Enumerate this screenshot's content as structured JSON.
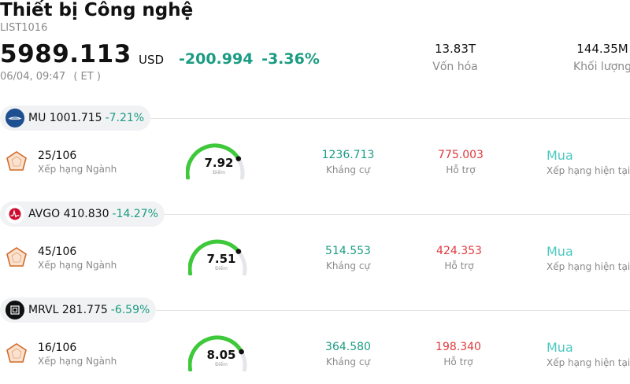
{
  "header": {
    "title": "Thiết bị Công nghệ",
    "code": "LIST1016",
    "price": "5989.113",
    "currency": "USD",
    "change": "-200.994",
    "change_pct": "-3.36%",
    "datetime": "06/04, 09:47",
    "tz": "( ET )"
  },
  "stats": {
    "market_cap": {
      "value": "13.83T",
      "label": "Vốn hóa"
    },
    "volume": {
      "value": "144.35M",
      "label": "Khối lượng"
    }
  },
  "colors": {
    "positive_green": "#1a9c82",
    "support_red": "#e0393e",
    "rating_teal": "#4fc8c0",
    "gauge_green": "#3ec93a"
  },
  "stocks": [
    {
      "ticker_price": "MU 1001.715",
      "change_pct": "-7.21%",
      "rank": "25/106",
      "rank_label": "Xếp hạng Ngành",
      "score": "7.92",
      "score_value": 7.92,
      "score_label": "Điểm",
      "resistance": "1236.713",
      "resistance_label": "Kháng cự",
      "support": "775.003",
      "support_label": "Hỗ trợ",
      "rating": "Mua",
      "rating_label": "Xếp hạng hiện tại",
      "logo": "micron-logo-icon",
      "logo_color": "#1d4f91"
    },
    {
      "ticker_price": "AVGO 410.830",
      "change_pct": "-14.27%",
      "rank": "45/106",
      "rank_label": "Xếp hạng Ngành",
      "score": "7.51",
      "score_value": 7.51,
      "score_label": "Điểm",
      "resistance": "514.553",
      "resistance_label": "Kháng cự",
      "support": "424.353",
      "support_label": "Hỗ trợ",
      "rating": "Mua",
      "rating_label": "Xếp hạng hiện tại",
      "logo": "broadcom-logo-icon",
      "logo_color": "#cc092f"
    },
    {
      "ticker_price": "MRVL 281.775",
      "change_pct": "-6.59%",
      "rank": "16/106",
      "rank_label": "Xếp hạng Ngành",
      "score": "8.05",
      "score_value": 8.05,
      "score_label": "Điểm",
      "resistance": "364.580",
      "resistance_label": "Kháng cự",
      "support": "198.340",
      "support_label": "Hỗ trợ",
      "rating": "Mua",
      "rating_label": "Xếp hạng hiện tại",
      "logo": "marvell-logo-icon",
      "logo_color": "#111111"
    }
  ]
}
